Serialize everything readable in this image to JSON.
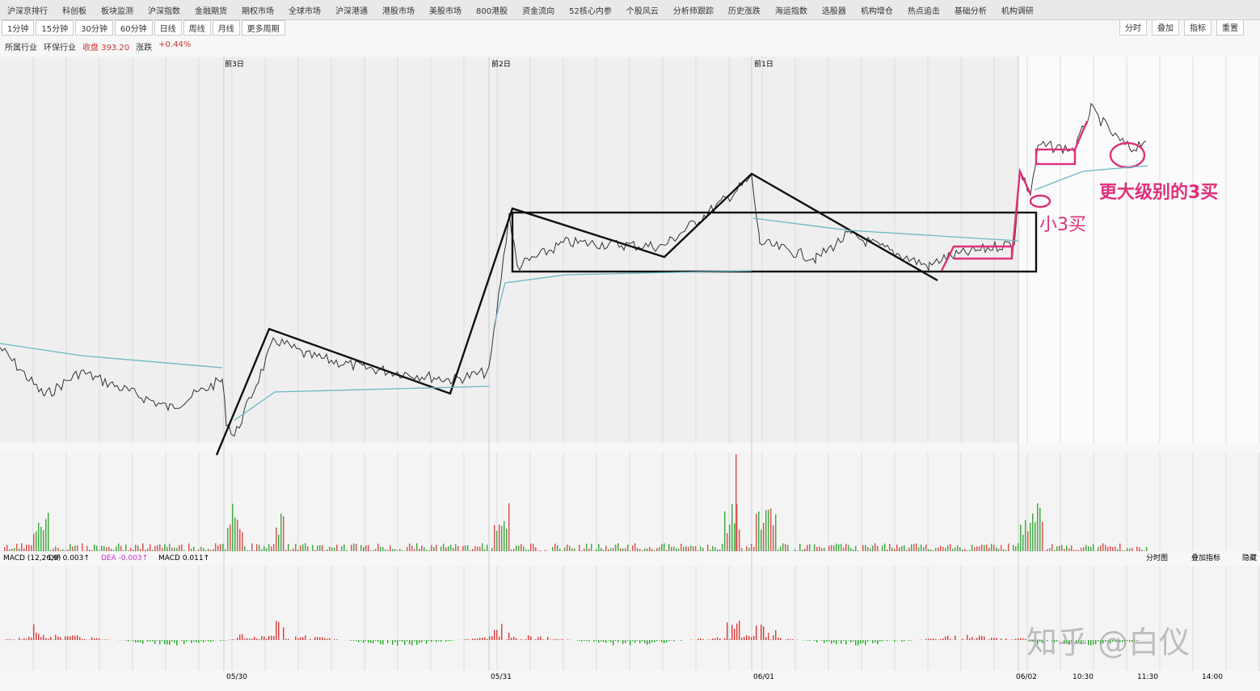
{
  "toolbar": {
    "tabs": [
      "沪深京排行",
      "科创板",
      "板块监测",
      "沪深指数",
      "金融期货",
      "期权市场",
      "全球市场",
      "沪深港通",
      "港股市场",
      "美股市场",
      "800港股",
      "资金流向",
      "52核心内参",
      "个股风云",
      "分析师跟踪",
      "历史涨跌",
      "海运指数",
      "选股器",
      "机构增仓",
      "热点追击",
      "基础分析",
      "机构调研"
    ],
    "right_tabs": [
      "分时",
      "叠加",
      "指标",
      "重置"
    ]
  },
  "periods": [
    "1分钟",
    "15分钟",
    "30分钟",
    "60分钟",
    "日线",
    "周线",
    "月线",
    "更多周期"
  ],
  "info": {
    "industry_label": "所属行业",
    "industry": "环保行业",
    "close": "收盘 393.20",
    "change_label": "涨跌",
    "change": "+0.44%"
  },
  "chart": {
    "day_labels": [
      "前3日",
      "前2日",
      "前1日"
    ],
    "date_labels": [
      "05/30",
      "05/31",
      "06/01",
      "06/02",
      "10:30",
      "11:30",
      "14:00"
    ],
    "annotations": {
      "small_buy": "小3买",
      "big_buy": "更大级别的3买"
    }
  },
  "macd_panel": {
    "title": "MACD (12,26,9)",
    "dif": "DIF 0.003↑",
    "dea": "DEA -0.003↑",
    "macd": "MACD 0.011↑",
    "right_labels": [
      "分时图",
      "叠加指标",
      "隐藏"
    ]
  },
  "watermark": "知乎 @白仪"
}
